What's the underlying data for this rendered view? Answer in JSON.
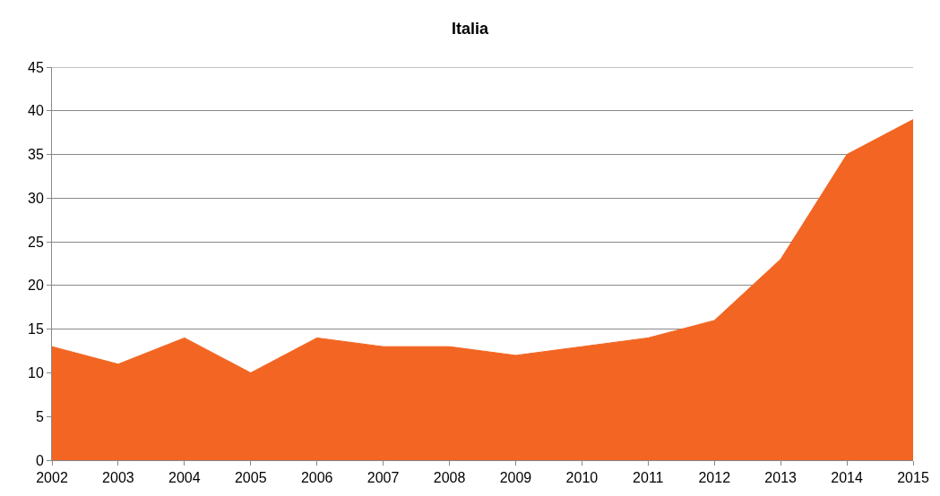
{
  "chart_data": {
    "type": "area",
    "title": "Italia",
    "x": [
      2002,
      2003,
      2004,
      2005,
      2006,
      2007,
      2008,
      2009,
      2010,
      2011,
      2012,
      2013,
      2014,
      2015
    ],
    "series": [
      {
        "color": "#f26522",
        "values": [
          13,
          11,
          14,
          10,
          14,
          13,
          13,
          12,
          13,
          14,
          16,
          23,
          35,
          39
        ]
      }
    ],
    "xlim": [
      2002,
      2015
    ],
    "xticks": [
      2002,
      2003,
      2004,
      2005,
      2006,
      2007,
      2008,
      2009,
      2010,
      2011,
      2012,
      2013,
      2014,
      2015
    ],
    "ylim": [
      0,
      45
    ],
    "yticks": [
      0,
      5,
      10,
      15,
      20,
      25,
      30,
      35,
      40,
      45
    ],
    "grid": "y"
  }
}
